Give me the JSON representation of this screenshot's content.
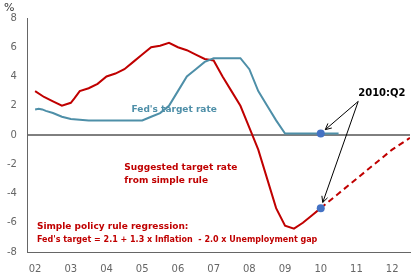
{
  "chart_data": {
    "type": "line",
    "ylabel": "%",
    "xlim": [
      1.8,
      12.5
    ],
    "xticks": [
      {
        "value": 2,
        "label": "02"
      },
      {
        "value": 3,
        "label": "03"
      },
      {
        "value": 4,
        "label": "04"
      },
      {
        "value": 5,
        "label": "05"
      },
      {
        "value": 6,
        "label": "06"
      },
      {
        "value": 7,
        "label": "07"
      },
      {
        "value": 8,
        "label": "08"
      },
      {
        "value": 9,
        "label": "09"
      },
      {
        "value": 10,
        "label": "10"
      },
      {
        "value": 11,
        "label": "11"
      },
      {
        "value": 12,
        "label": "12"
      }
    ],
    "ylim": [
      -8,
      8
    ],
    "yticks": [
      -8,
      -6,
      -4,
      -2,
      0,
      2,
      4,
      6,
      8
    ],
    "grid": false,
    "hline": 0,
    "series": [
      {
        "color": "#4E8FA8",
        "x": [
          2.0,
          2.1,
          2.2,
          2.3,
          2.5,
          2.75,
          3.0,
          3.25,
          3.5,
          3.75,
          4.0,
          4.25,
          4.5,
          4.75,
          5.0,
          5.25,
          5.5,
          5.75,
          6.0,
          6.25,
          6.5,
          6.75,
          7.0,
          7.25,
          7.5,
          7.75,
          8.0,
          8.25,
          8.5,
          8.75,
          9.0,
          9.25,
          9.5,
          9.75,
          10.0,
          10.25,
          10.5
        ],
        "values": [
          1.75,
          1.8,
          1.75,
          1.65,
          1.5,
          1.25,
          1.1,
          1.05,
          1.0,
          1.0,
          1.0,
          1.0,
          1.0,
          1.0,
          1.0,
          1.25,
          1.5,
          2.0,
          3.0,
          4.0,
          4.5,
          5.0,
          5.25,
          5.25,
          5.25,
          5.25,
          4.5,
          3.0,
          2.0,
          1.0,
          0.1,
          0.1,
          0.1,
          0.1,
          0.1,
          0.1,
          0.1
        ]
      },
      {
        "color": "#C00000",
        "x": [
          2.0,
          2.25,
          2.5,
          2.75,
          3.0,
          3.1,
          3.25,
          3.5,
          3.75,
          4.0,
          4.25,
          4.5,
          4.75,
          5.0,
          5.25,
          5.5,
          5.75,
          6.0,
          6.25,
          6.5,
          6.75,
          7.0,
          7.25,
          7.5,
          7.75,
          8.0,
          8.25,
          8.5,
          8.75,
          9.0,
          9.25,
          9.5,
          9.75,
          10.0
        ],
        "values": [
          3.0,
          2.6,
          2.3,
          2.0,
          2.2,
          2.5,
          3.0,
          3.2,
          3.5,
          4.0,
          4.2,
          4.5,
          5.0,
          5.5,
          6.0,
          6.1,
          6.3,
          6.0,
          5.8,
          5.5,
          5.2,
          5.1,
          4.0,
          3.0,
          2.0,
          0.5,
          -1.0,
          -3.0,
          -5.0,
          -6.2,
          -6.4,
          -6.0,
          -5.5,
          -5.0
        ]
      },
      {
        "color": "#C00000",
        "line_style": "dashed",
        "x": [
          10.0,
          10.5,
          11.0,
          11.5,
          12.0,
          12.5
        ],
        "values": [
          -5.0,
          -4.0,
          -3.0,
          -2.0,
          -1.0,
          -0.2
        ]
      },
      {
        "type": "scatter",
        "marker": "circle",
        "color": "#4472C4",
        "x": [
          10.0,
          10.0
        ],
        "values": [
          0.1,
          -5.0
        ]
      }
    ],
    "annotations": [
      {
        "text": "2010:Q2",
        "x": 11.05,
        "y": 2.3,
        "color": "#000000",
        "arrows_to": [
          {
            "x": 10.0,
            "y": 0.1
          },
          {
            "x": 10.0,
            "y": -5.0
          }
        ]
      },
      {
        "text": "Fed's target rate",
        "x": 4.7,
        "y": 1.7,
        "color": "#4E8FA8"
      },
      {
        "text": "Suggested target rate",
        "x": 4.5,
        "y": -2.2,
        "color": "#C00000"
      },
      {
        "text": "from simple rule",
        "x": 4.5,
        "y": -3.1,
        "color": "#C00000"
      },
      {
        "text": "Simple policy rule regression:",
        "x": 2.05,
        "y": -6.3,
        "color": "#C00000"
      },
      {
        "text": "Fed's target = 2.1 + 1.3 x Inflation  - 2.0 x Unemployment gap",
        "x": 2.05,
        "y": -7.2,
        "color": "#C00000"
      }
    ]
  }
}
